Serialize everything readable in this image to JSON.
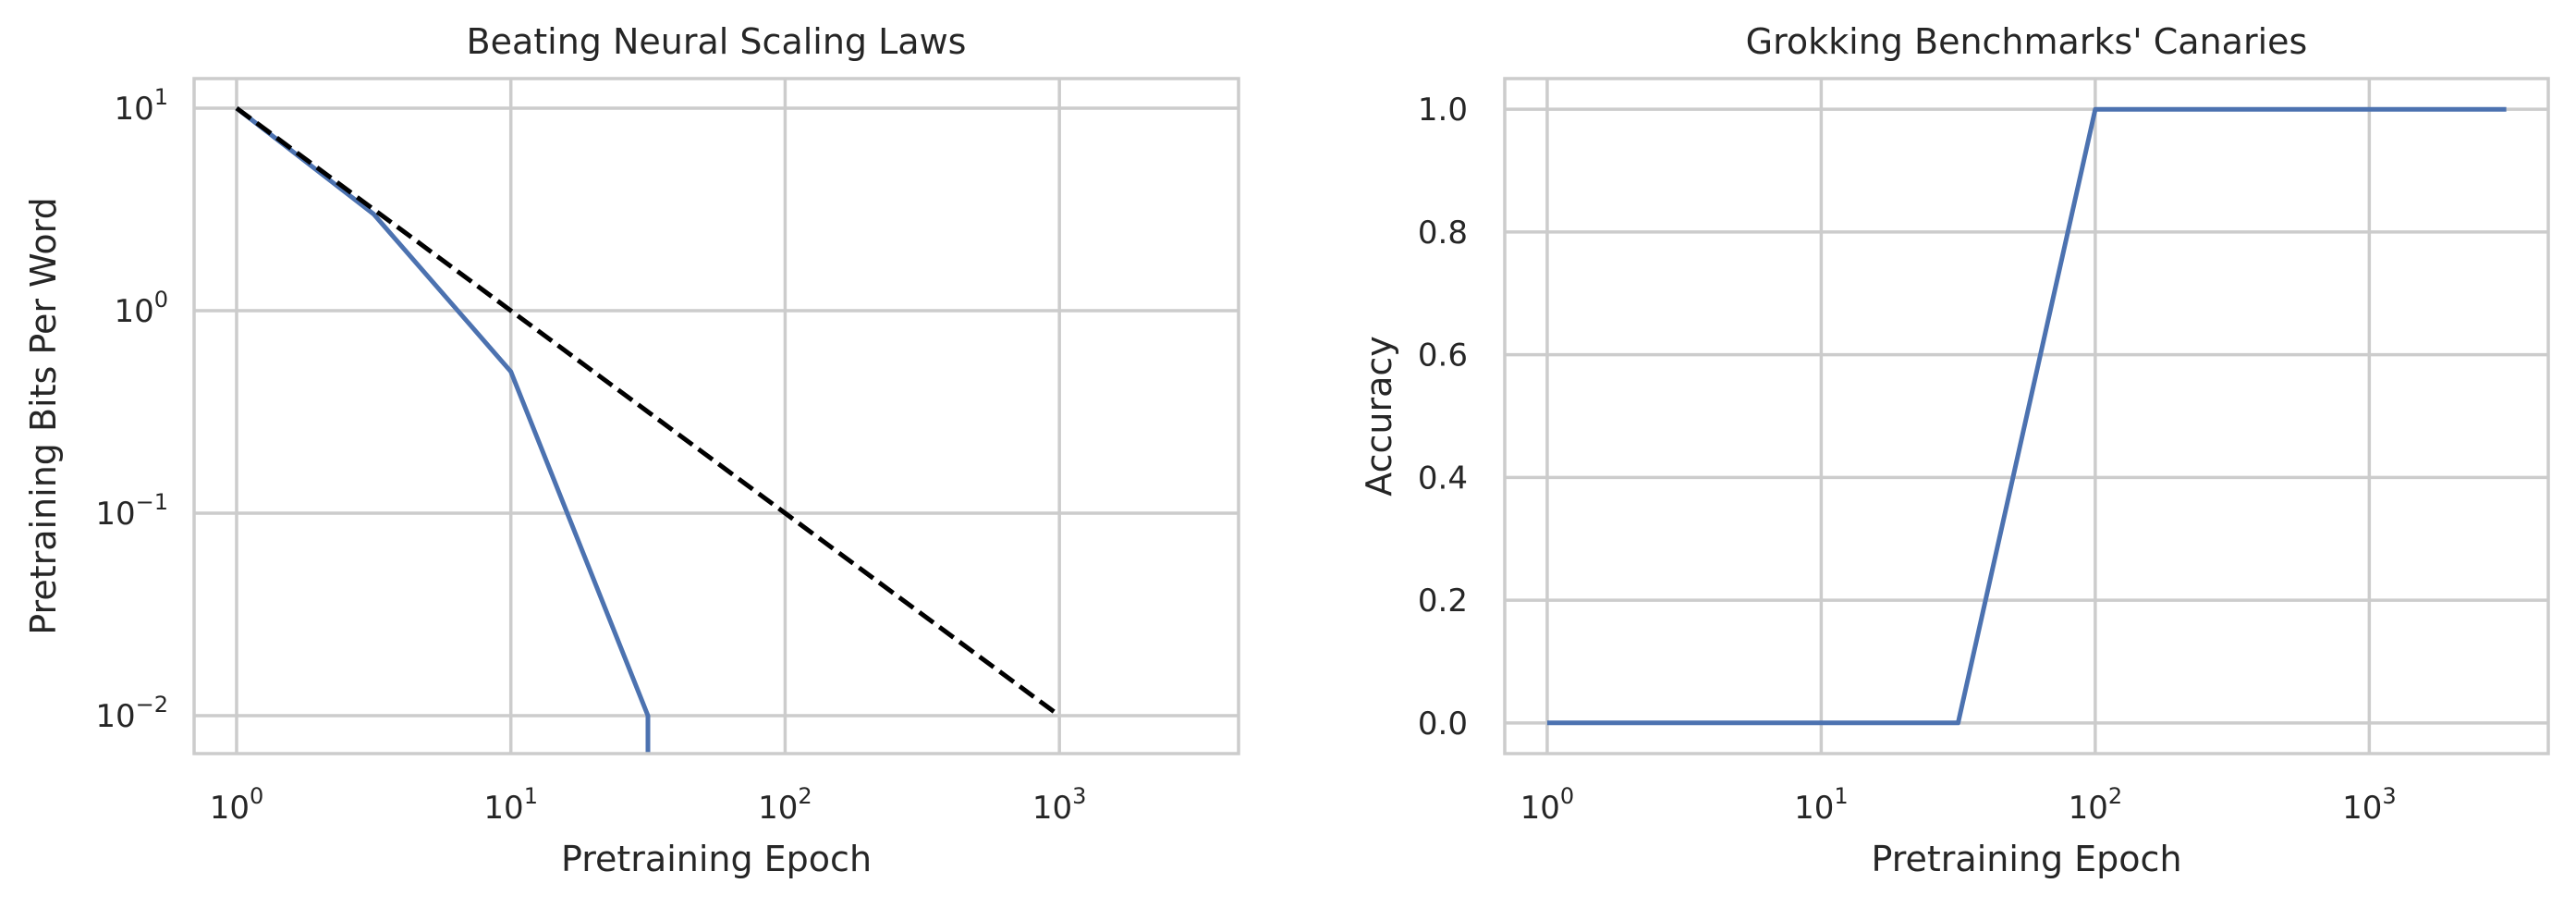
{
  "chart_data": [
    {
      "type": "line",
      "title": "Beating Neural Scaling Laws",
      "xlabel": "Pretraining Epoch",
      "ylabel": "Pretraining Bits Per Word",
      "xscale": "log",
      "yscale": "log",
      "xlim": [
        0.7,
        4500
      ],
      "ylim": [
        0.0065,
        14
      ],
      "xticks": [
        1,
        10,
        100,
        1000
      ],
      "xtick_labels": [
        {
          "base": "10",
          "exp": "0"
        },
        {
          "base": "10",
          "exp": "1"
        },
        {
          "base": "10",
          "exp": "2"
        },
        {
          "base": "10",
          "exp": "3"
        }
      ],
      "yticks": [
        0.01,
        0.1,
        1,
        10
      ],
      "ytick_labels": [
        {
          "base": "10",
          "exp": "−2"
        },
        {
          "base": "10",
          "exp": "−1"
        },
        {
          "base": "10",
          "exp": "0"
        },
        {
          "base": "10",
          "exp": "1"
        }
      ],
      "grid": true,
      "series": [
        {
          "color": "#4c72b0",
          "style": "solid",
          "x": [
            1,
            3.16,
            10,
            31.6,
            31.6
          ],
          "y": [
            10,
            3.0,
            0.5,
            0.01,
            0.0065
          ]
        },
        {
          "color": "#000000",
          "style": "dashed",
          "x": [
            1,
            1000
          ],
          "y": [
            10,
            0.01
          ]
        }
      ]
    },
    {
      "type": "line",
      "title": "Grokking Benchmarks' Canaries",
      "xlabel": "Pretraining Epoch",
      "ylabel": "Accuracy",
      "xscale": "log",
      "yscale": "linear",
      "xlim": [
        0.7,
        4500
      ],
      "ylim": [
        -0.05,
        1.05
      ],
      "xticks": [
        1,
        10,
        100,
        1000
      ],
      "xtick_labels": [
        {
          "base": "10",
          "exp": "0"
        },
        {
          "base": "10",
          "exp": "1"
        },
        {
          "base": "10",
          "exp": "2"
        },
        {
          "base": "10",
          "exp": "3"
        }
      ],
      "yticks": [
        0.0,
        0.2,
        0.4,
        0.6,
        0.8,
        1.0
      ],
      "ytick_labels": [
        "0.0",
        "0.2",
        "0.4",
        "0.6",
        "0.8",
        "1.0"
      ],
      "grid": true,
      "series": [
        {
          "color": "#4c72b0",
          "style": "solid",
          "x": [
            1,
            31.6,
            100,
            3162
          ],
          "y": [
            0,
            0,
            1,
            1
          ]
        }
      ]
    }
  ]
}
